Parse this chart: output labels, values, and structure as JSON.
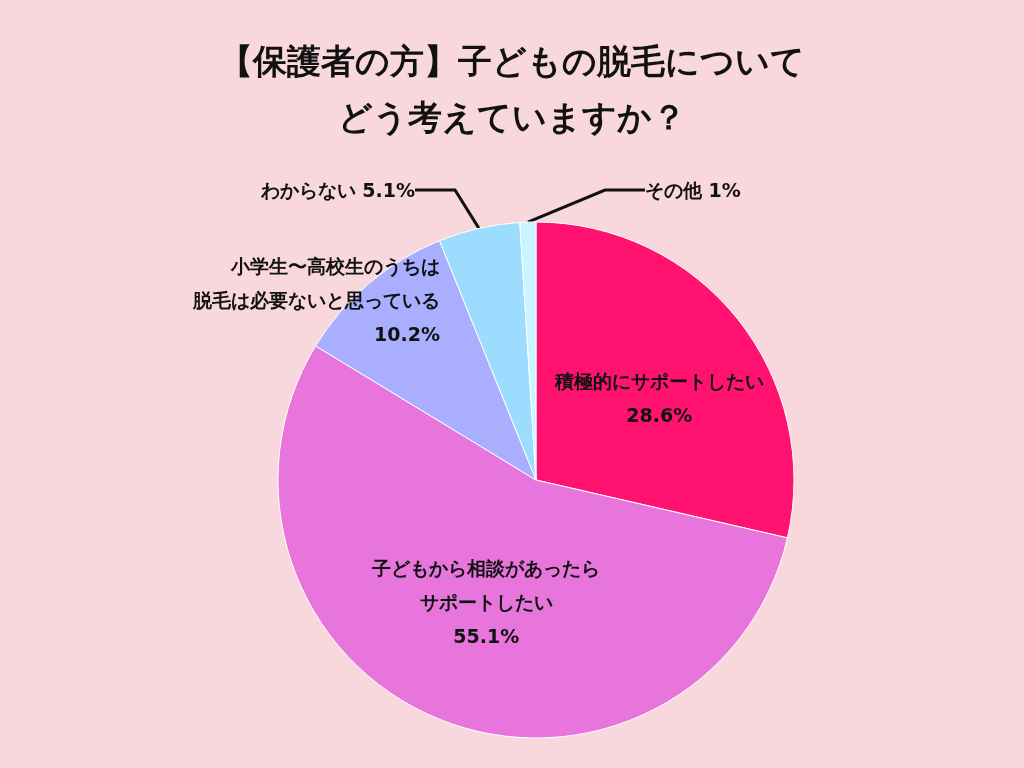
{
  "chart_data": {
    "type": "pie",
    "title": "【保護者の方】子どもの脱毛についてどう考えていますか？",
    "categories": [
      "積極的にサポートしたい",
      "子どもから相談があったらサポートしたい",
      "小学生〜高校生のうちは脱毛は必要ないと思っている",
      "わからない",
      "その他"
    ],
    "values": [
      28.6,
      55.1,
      10.2,
      5.1,
      1
    ],
    "value_labels": [
      "28.6%",
      "55.1%",
      "10.2%",
      "5.1%",
      "1%"
    ],
    "colors": [
      "#ff1270",
      "#e875dc",
      "#aaaeff",
      "#9cdcff",
      "#c8f5ff"
    ],
    "legend": false
  }
}
